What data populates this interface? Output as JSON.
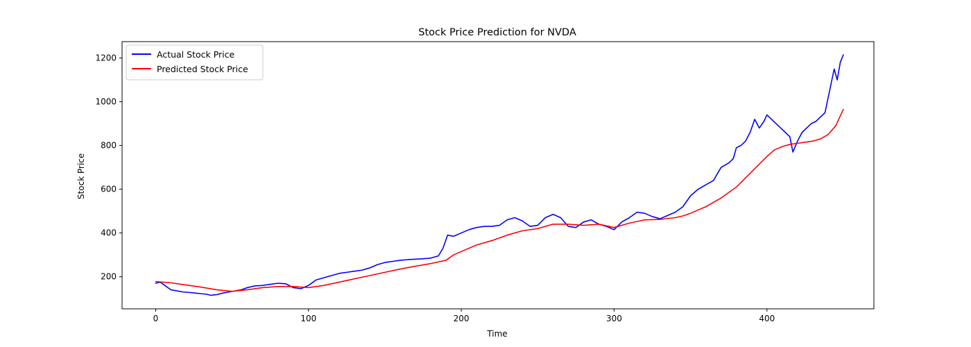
{
  "chart_data": {
    "type": "line",
    "title": "Stock Price Prediction for NVDA",
    "xlabel": "Time",
    "ylabel": "Stock Price",
    "xlim": [
      -22,
      470
    ],
    "ylim": [
      53,
      1275
    ],
    "xticks": [
      0,
      100,
      200,
      300,
      400
    ],
    "yticks": [
      200,
      400,
      600,
      800,
      1000,
      1200
    ],
    "grid": false,
    "legend_position": "top-left",
    "series": [
      {
        "name": "Actual Stock Price",
        "color": "#0000ff",
        "points": [
          [
            0,
            170
          ],
          [
            3,
            175
          ],
          [
            6,
            160
          ],
          [
            10,
            140
          ],
          [
            14,
            135
          ],
          [
            18,
            130
          ],
          [
            22,
            128
          ],
          [
            26,
            125
          ],
          [
            30,
            122
          ],
          [
            33,
            120
          ],
          [
            36,
            115
          ],
          [
            40,
            118
          ],
          [
            44,
            125
          ],
          [
            48,
            130
          ],
          [
            52,
            135
          ],
          [
            56,
            140
          ],
          [
            60,
            150
          ],
          [
            65,
            158
          ],
          [
            70,
            160
          ],
          [
            75,
            165
          ],
          [
            80,
            170
          ],
          [
            85,
            168
          ],
          [
            90,
            150
          ],
          [
            95,
            145
          ],
          [
            100,
            160
          ],
          [
            105,
            185
          ],
          [
            110,
            195
          ],
          [
            115,
            205
          ],
          [
            120,
            215
          ],
          [
            125,
            220
          ],
          [
            130,
            225
          ],
          [
            135,
            230
          ],
          [
            140,
            240
          ],
          [
            145,
            255
          ],
          [
            150,
            265
          ],
          [
            155,
            270
          ],
          [
            160,
            275
          ],
          [
            165,
            278
          ],
          [
            170,
            280
          ],
          [
            175,
            282
          ],
          [
            180,
            285
          ],
          [
            185,
            295
          ],
          [
            188,
            330
          ],
          [
            191,
            390
          ],
          [
            195,
            385
          ],
          [
            200,
            400
          ],
          [
            205,
            415
          ],
          [
            210,
            425
          ],
          [
            215,
            430
          ],
          [
            220,
            430
          ],
          [
            225,
            435
          ],
          [
            230,
            460
          ],
          [
            235,
            470
          ],
          [
            240,
            455
          ],
          [
            245,
            430
          ],
          [
            250,
            435
          ],
          [
            255,
            470
          ],
          [
            260,
            485
          ],
          [
            265,
            470
          ],
          [
            270,
            430
          ],
          [
            275,
            425
          ],
          [
            280,
            450
          ],
          [
            285,
            460
          ],
          [
            290,
            440
          ],
          [
            295,
            430
          ],
          [
            300,
            415
          ],
          [
            305,
            450
          ],
          [
            310,
            470
          ],
          [
            315,
            495
          ],
          [
            320,
            490
          ],
          [
            325,
            475
          ],
          [
            330,
            465
          ],
          [
            335,
            480
          ],
          [
            340,
            495
          ],
          [
            345,
            520
          ],
          [
            350,
            570
          ],
          [
            355,
            600
          ],
          [
            360,
            620
          ],
          [
            365,
            640
          ],
          [
            370,
            700
          ],
          [
            375,
            720
          ],
          [
            378,
            740
          ],
          [
            380,
            790
          ],
          [
            383,
            800
          ],
          [
            386,
            820
          ],
          [
            389,
            860
          ],
          [
            392,
            920
          ],
          [
            395,
            880
          ],
          [
            398,
            910
          ],
          [
            400,
            940
          ],
          [
            403,
            920
          ],
          [
            406,
            900
          ],
          [
            409,
            880
          ],
          [
            412,
            860
          ],
          [
            415,
            840
          ],
          [
            417,
            770
          ],
          [
            420,
            820
          ],
          [
            423,
            860
          ],
          [
            426,
            880
          ],
          [
            429,
            900
          ],
          [
            432,
            910
          ],
          [
            435,
            930
          ],
          [
            438,
            950
          ],
          [
            441,
            1050
          ],
          [
            444,
            1150
          ],
          [
            446,
            1100
          ],
          [
            448,
            1180
          ],
          [
            450,
            1215
          ]
        ]
      },
      {
        "name": "Predicted Stock Price",
        "color": "#ff0000",
        "points": [
          [
            0,
            178
          ],
          [
            10,
            172
          ],
          [
            20,
            162
          ],
          [
            30,
            152
          ],
          [
            40,
            140
          ],
          [
            50,
            133
          ],
          [
            60,
            140
          ],
          [
            70,
            150
          ],
          [
            80,
            155
          ],
          [
            90,
            155
          ],
          [
            100,
            150
          ],
          [
            110,
            160
          ],
          [
            120,
            175
          ],
          [
            130,
            190
          ],
          [
            140,
            205
          ],
          [
            150,
            220
          ],
          [
            160,
            235
          ],
          [
            170,
            248
          ],
          [
            180,
            260
          ],
          [
            190,
            275
          ],
          [
            195,
            300
          ],
          [
            200,
            315
          ],
          [
            210,
            345
          ],
          [
            220,
            365
          ],
          [
            230,
            390
          ],
          [
            240,
            410
          ],
          [
            250,
            420
          ],
          [
            260,
            440
          ],
          [
            270,
            440
          ],
          [
            280,
            435
          ],
          [
            290,
            440
          ],
          [
            300,
            425
          ],
          [
            310,
            445
          ],
          [
            320,
            460
          ],
          [
            330,
            462
          ],
          [
            340,
            470
          ],
          [
            345,
            478
          ],
          [
            350,
            490
          ],
          [
            360,
            520
          ],
          [
            370,
            560
          ],
          [
            380,
            610
          ],
          [
            390,
            680
          ],
          [
            400,
            750
          ],
          [
            405,
            780
          ],
          [
            410,
            795
          ],
          [
            415,
            805
          ],
          [
            420,
            810
          ],
          [
            425,
            815
          ],
          [
            430,
            820
          ],
          [
            435,
            830
          ],
          [
            440,
            850
          ],
          [
            445,
            890
          ],
          [
            450,
            965
          ]
        ]
      }
    ]
  }
}
